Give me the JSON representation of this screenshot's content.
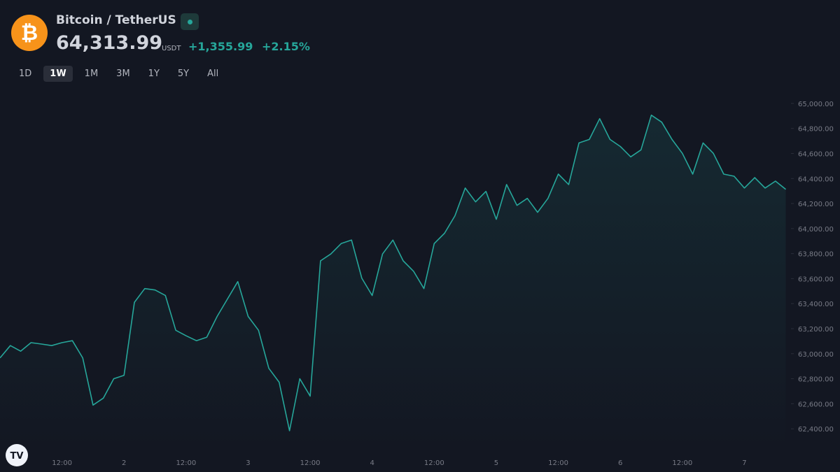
{
  "header": {
    "title": "Bitcoin / TetherUS",
    "price": "64,313.99",
    "unit": "USDT",
    "change": "+1,355.99",
    "change_percent": "+2.15%",
    "tabs": [
      "1D",
      "1W",
      "1M",
      "3M",
      "1Y",
      "5Y",
      "All"
    ],
    "active_tab": "1W"
  },
  "chart_data": {
    "type": "line",
    "categories": [
      null,
      null,
      null,
      null,
      null,
      null,
      "12:00",
      null,
      null,
      null,
      null,
      null,
      "2",
      null,
      null,
      null,
      null,
      null,
      "12:00",
      null,
      null,
      null,
      null,
      null,
      "3",
      null,
      null,
      null,
      null,
      null,
      "12:00",
      null,
      null,
      null,
      null,
      null,
      "4",
      null,
      null,
      null,
      null,
      null,
      "12:00",
      null,
      null,
      null,
      null,
      null,
      "5",
      null,
      null,
      null,
      null,
      null,
      "12:00",
      null,
      null,
      null,
      null,
      null,
      "6",
      null,
      null,
      null,
      null,
      null,
      "12:00",
      null,
      null,
      null,
      null,
      null,
      "7",
      null,
      null,
      null,
      null
    ],
    "values": [
      62966,
      63065,
      63020,
      63088,
      63077,
      63065,
      63088,
      63104,
      62966,
      62589,
      62645,
      62800,
      62827,
      63410,
      63520,
      63509,
      63465,
      63187,
      63143,
      63104,
      63132,
      63298,
      63437,
      63576,
      63298,
      63187,
      62883,
      62772,
      62384,
      62800,
      62661,
      63742,
      63797,
      63880,
      63908,
      63603,
      63465,
      63797,
      63908,
      63742,
      63659,
      63520,
      63880,
      63963,
      64102,
      64324,
      64213,
      64297,
      64074,
      64352,
      64185,
      64241,
      64130,
      64241,
      64435,
      64352,
      64684,
      64712,
      64878,
      64712,
      64656,
      64573,
      64629,
      64906,
      64850,
      64712,
      64601,
      64435,
      64684,
      64601,
      64435,
      64418,
      64324,
      64407,
      64324,
      64379,
      64313.99
    ],
    "color": "#26a69a",
    "ylim": [
      62250,
      65100
    ],
    "yticks": [
      {
        "value": 62400,
        "label": "62,400.00"
      },
      {
        "value": 62600,
        "label": "62,600.00"
      },
      {
        "value": 62800,
        "label": "62,800.00"
      },
      {
        "value": 63000,
        "label": "63,000.00"
      },
      {
        "value": 63200,
        "label": "63,200.00"
      },
      {
        "value": 63400,
        "label": "63,400.00"
      },
      {
        "value": 63600,
        "label": "63,600.00"
      },
      {
        "value": 63800,
        "label": "63,800.00"
      },
      {
        "value": 64000,
        "label": "64,000.00"
      },
      {
        "value": 64200,
        "label": "64,200.00"
      },
      {
        "value": 64400,
        "label": "64,400.00"
      },
      {
        "value": 64600,
        "label": "64,600.00"
      },
      {
        "value": 64800,
        "label": "64,800.00"
      },
      {
        "value": 65000,
        "label": "65,000.00"
      }
    ],
    "grid": false
  }
}
